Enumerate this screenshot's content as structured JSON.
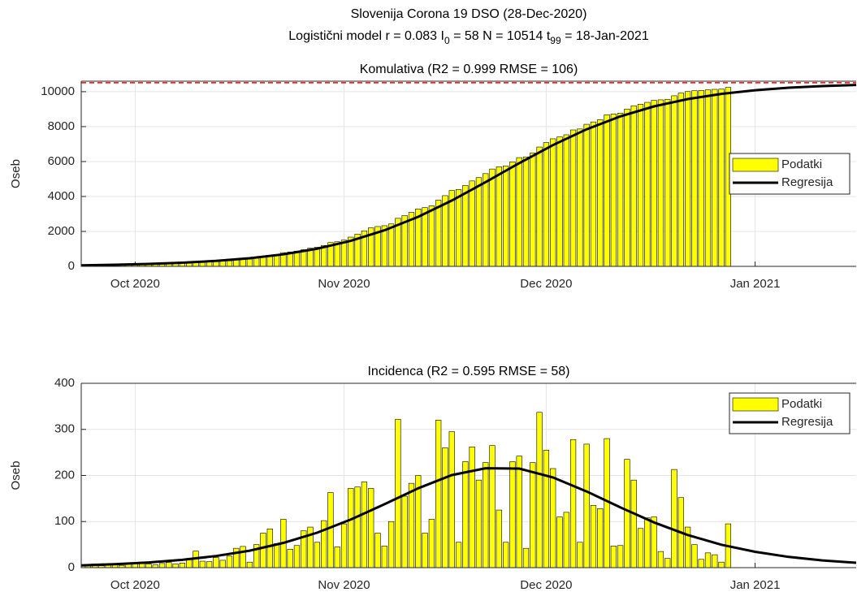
{
  "title": "Slovenija Corona 19 DSO (28-Dec-2020)",
  "subtitle_parts": [
    "Logistični model r = 0.083  I",
    "0",
    " = 58  N = 10514  t",
    "99",
    " = 18-Jan-2021"
  ],
  "chart_data": [
    {
      "type": "bar",
      "title": "Komulativa (R2 = 0.999  RMSE = 106)",
      "ylabel": "Oseb",
      "xlim": [
        0,
        115
      ],
      "ylim": [
        0,
        10600
      ],
      "xticks": [
        {
          "value": 8,
          "label": "Oct 2020"
        },
        {
          "value": 39,
          "label": "Nov 2020"
        },
        {
          "value": 69,
          "label": "Dec 2020"
        },
        {
          "value": 100,
          "label": "Jan 2021"
        }
      ],
      "yticks": [
        0,
        2000,
        4000,
        6000,
        8000,
        10000
      ],
      "grid": true,
      "legend": "east",
      "hline": {
        "value": 10514,
        "color": "#ff0000"
      },
      "series": [
        {
          "name": "Podatki",
          "type": "bar",
          "color": "#ffff00",
          "x": [
            1,
            2,
            3,
            4,
            5,
            6,
            7,
            8,
            9,
            10,
            11,
            12,
            13,
            14,
            15,
            16,
            17,
            18,
            19,
            20,
            21,
            22,
            23,
            24,
            25,
            26,
            27,
            28,
            29,
            30,
            31,
            32,
            33,
            34,
            35,
            36,
            37,
            38,
            39,
            40,
            41,
            42,
            43,
            44,
            45,
            46,
            47,
            48,
            49,
            50,
            51,
            52,
            53,
            54,
            55,
            56,
            57,
            58,
            59,
            60,
            61,
            62,
            63,
            64,
            65,
            66,
            67,
            68,
            69,
            70,
            71,
            72,
            73,
            74,
            75,
            76,
            77,
            78,
            79,
            80,
            81,
            82,
            83,
            84,
            85,
            86,
            87,
            88,
            89,
            90,
            91,
            92,
            93,
            94,
            95,
            96
          ],
          "values": [
            60,
            68,
            72,
            78,
            85,
            90,
            99,
            109,
            121,
            129,
            135,
            144,
            155,
            163,
            173,
            193,
            229,
            243,
            256,
            278,
            294,
            319,
            361,
            407,
            419,
            469,
            544,
            628,
            680,
            785,
            825,
            873,
            953,
            1041,
            1096,
            1198,
            1361,
            1406,
            1501,
            1673,
            1848,
            2034,
            2206,
            2281,
            2328,
            2428,
            2750,
            2905,
            3088,
            3288,
            3363,
            3468,
            3788,
            4048,
            4343,
            4398,
            4628,
            4890,
            5080,
            5308,
            5573,
            5698,
            5753,
            5983,
            6225,
            6267,
            6495,
            6832,
            7087,
            7302,
            7412,
            7532,
            7810,
            7865,
            8133,
            8268,
            8396,
            8676,
            8723,
            8771,
            9006,
            9196,
            9281,
            9389,
            9499,
            9534,
            9554,
            9767,
            9919,
            10007,
            10057,
            10075,
            10107,
            10135,
            10147,
            10242
          ]
        },
        {
          "name": "Regresija",
          "type": "line",
          "color": "#000000",
          "x": [
            0,
            5,
            10,
            15,
            20,
            25,
            30,
            35,
            40,
            45,
            50,
            55,
            60,
            65,
            70,
            75,
            80,
            85,
            90,
            95,
            100,
            105,
            110,
            115
          ],
          "values": [
            61,
            92,
            139,
            208,
            312,
            466,
            690,
            1011,
            1458,
            2062,
            2836,
            3771,
            4821,
            5907,
            6941,
            7846,
            8586,
            9157,
            9577,
            9876,
            10084,
            10226,
            10322,
            10386
          ]
        }
      ]
    },
    {
      "type": "bar",
      "title": "Incidenca (R2 = 0.595  RMSE = 58)",
      "ylabel": "Oseb",
      "xlim": [
        0,
        115
      ],
      "ylim": [
        0,
        400
      ],
      "xticks": [
        {
          "value": 8,
          "label": "Oct 2020"
        },
        {
          "value": 39,
          "label": "Nov 2020"
        },
        {
          "value": 69,
          "label": "Dec 2020"
        },
        {
          "value": 100,
          "label": "Jan 2021"
        }
      ],
      "yticks": [
        0,
        100,
        200,
        300,
        400
      ],
      "grid": true,
      "legend": "northeast",
      "series": [
        {
          "name": "Podatki",
          "type": "bar",
          "color": "#ffff00",
          "x": [
            1,
            2,
            3,
            4,
            5,
            6,
            7,
            8,
            9,
            10,
            11,
            12,
            13,
            14,
            15,
            16,
            17,
            18,
            19,
            20,
            21,
            22,
            23,
            24,
            25,
            26,
            27,
            28,
            29,
            30,
            31,
            32,
            33,
            34,
            35,
            36,
            37,
            38,
            39,
            40,
            41,
            42,
            43,
            44,
            45,
            46,
            47,
            48,
            49,
            50,
            51,
            52,
            53,
            54,
            55,
            56,
            57,
            58,
            59,
            60,
            61,
            62,
            63,
            64,
            65,
            66,
            67,
            68,
            69,
            70,
            71,
            72,
            73,
            74,
            75,
            76,
            77,
            78,
            79,
            80,
            81,
            82,
            83,
            84,
            85,
            86,
            87,
            88,
            89,
            90,
            91,
            92,
            93,
            94,
            95,
            96
          ],
          "values": [
            5,
            8,
            4,
            6,
            7,
            5,
            9,
            10,
            12,
            8,
            6,
            9,
            11,
            8,
            10,
            20,
            36,
            14,
            13,
            22,
            16,
            25,
            42,
            46,
            12,
            50,
            75,
            84,
            52,
            105,
            40,
            48,
            80,
            88,
            55,
            102,
            163,
            45,
            95,
            172,
            175,
            186,
            172,
            75,
            47,
            100,
            322,
            155,
            183,
            200,
            75,
            105,
            320,
            260,
            295,
            55,
            230,
            262,
            190,
            228,
            265,
            125,
            55,
            230,
            242,
            42,
            228,
            337,
            255,
            215,
            110,
            120,
            278,
            55,
            268,
            135,
            128,
            280,
            47,
            48,
            235,
            190,
            85,
            108,
            110,
            35,
            20,
            213,
            152,
            88,
            50,
            18,
            32,
            28,
            12,
            95
          ]
        },
        {
          "name": "Regresija",
          "type": "line",
          "color": "#000000",
          "x": [
            0,
            5,
            10,
            15,
            20,
            25,
            30,
            35,
            40,
            45,
            50,
            55,
            60,
            65,
            70,
            75,
            80,
            85,
            90,
            95,
            100,
            105,
            110,
            115
          ],
          "values": [
            5,
            7.6,
            11.3,
            17,
            25.2,
            36.9,
            53.8,
            75.8,
            104.3,
            137.6,
            172.2,
            200.8,
            215.7,
            215,
            195.7,
            165.3,
            130.7,
            98.1,
            70.9,
            49.7,
            34.3,
            23.3,
            15.6,
            10.5
          ]
        }
      ]
    }
  ]
}
